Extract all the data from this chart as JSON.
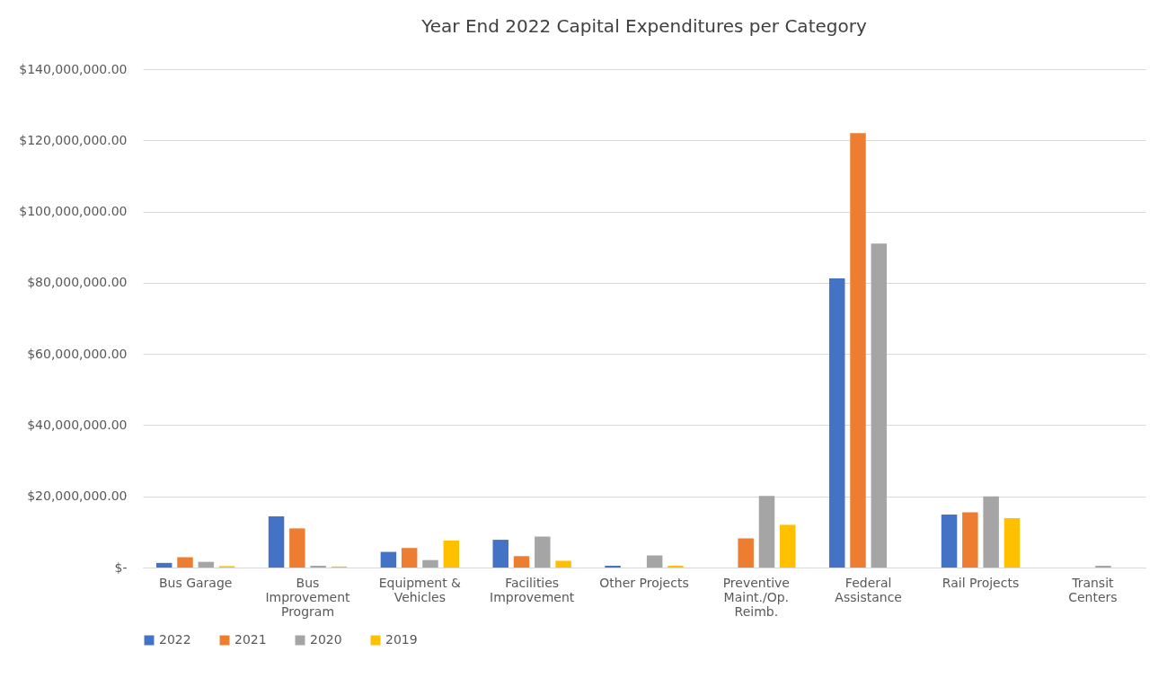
{
  "chart_data": {
    "type": "bar",
    "title": "Year End 2022 Capital Expenditures per Category",
    "categories": [
      "Bus Garage",
      "Bus Improvement Program",
      "Equipment & Vehicles",
      "Facilities Improvement",
      "Other Projects",
      "Preventive Maint./Op. Reimb.",
      "Federal Assistance",
      "Rail Projects",
      "Transit Centers"
    ],
    "series": [
      {
        "name": "2022",
        "color": "#4472c4",
        "values": [
          1300000,
          14400000,
          4400000,
          7800000,
          500000,
          0,
          81200000,
          14900000,
          0
        ]
      },
      {
        "name": "2021",
        "color": "#ed7d31",
        "values": [
          2900000,
          11000000,
          5500000,
          3200000,
          0,
          8200000,
          122000000,
          15500000,
          0
        ]
      },
      {
        "name": "2020",
        "color": "#a5a5a5",
        "values": [
          1600000,
          500000,
          2100000,
          8700000,
          3400000,
          20100000,
          91000000,
          20000000,
          500000
        ]
      },
      {
        "name": "2019",
        "color": "#ffc000",
        "values": [
          400000,
          300000,
          7600000,
          1900000,
          500000,
          12000000,
          0,
          13900000,
          0
        ]
      }
    ],
    "ylim": [
      0,
      140000000
    ],
    "yticks": [
      {
        "value": 0,
        "label": "$-"
      },
      {
        "value": 20000000,
        "label": "$20,000,000.00"
      },
      {
        "value": 40000000,
        "label": "$40,000,000.00"
      },
      {
        "value": 60000000,
        "label": "$60,000,000.00"
      },
      {
        "value": 80000000,
        "label": "$80,000,000.00"
      },
      {
        "value": 100000000,
        "label": "$100,000,000.00"
      },
      {
        "value": 120000000,
        "label": "$120,000,000.00"
      },
      {
        "value": 140000000,
        "label": "$140,000,000.00"
      }
    ],
    "grid": "y",
    "legend": "bottom"
  }
}
